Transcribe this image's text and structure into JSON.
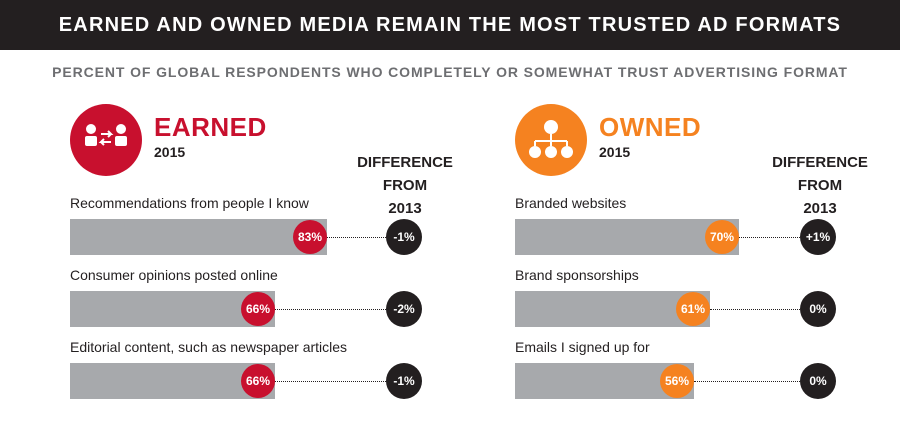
{
  "colors": {
    "earned": "#c8102e",
    "owned": "#f58220",
    "dark": "#231f20",
    "bar": "#a7a9ac"
  },
  "chart_data": {
    "type": "bar",
    "title": "EARNED AND OWNED MEDIA REMAIN THE MOST TRUSTED AD FORMATS",
    "subtitle": "PERCENT OF GLOBAL RESPONDENTS WHO COMPLETELY OR SOMEWHAT TRUST ADVERTISING FORMAT",
    "diff_header_lines": [
      "DIFFERENCE",
      "FROM",
      "2013"
    ],
    "panels": [
      {
        "name": "EARNED",
        "year": "2015",
        "icon": "people-exchange-icon",
        "categories": [
          "Recommendations from people I know",
          "Consumer opinions posted online",
          "Editorial content, such as newspaper articles"
        ],
        "values": [
          83,
          66,
          66
        ],
        "value_labels": [
          "83%",
          "66%",
          "66%"
        ],
        "differences": [
          "-1%",
          "-2%",
          "-1%"
        ]
      },
      {
        "name": "OWNED",
        "year": "2015",
        "icon": "org-chart-icon",
        "categories": [
          "Branded websites",
          "Brand sponsorships",
          "Emails I signed up for"
        ],
        "values": [
          70,
          61,
          56
        ],
        "value_labels": [
          "70%",
          "61%",
          "56%"
        ],
        "differences": [
          "+1%",
          "0%",
          "0%"
        ]
      }
    ]
  }
}
